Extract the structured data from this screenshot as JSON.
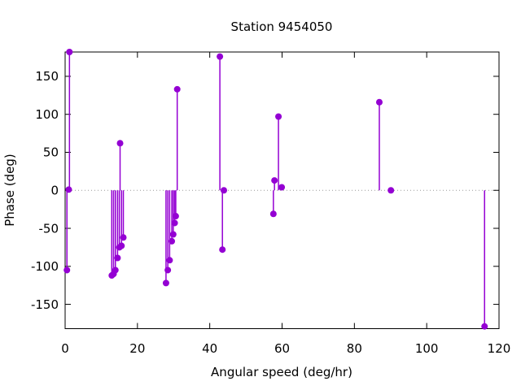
{
  "figure": {
    "background": "#ffffff",
    "accent_color": "#9400d3",
    "axis_color": "#000000",
    "zero_line_color": "#999999"
  },
  "chart_data": {
    "type": "scatter",
    "style": "impulses+points",
    "title": "Station 9454050",
    "xlabel": "Angular speed (deg/hr)",
    "ylabel": "Phase (deg)",
    "xlim": [
      0,
      120
    ],
    "ylim": [
      -182,
      182
    ],
    "xticks": [
      0,
      20,
      40,
      60,
      80,
      100,
      120
    ],
    "yticks": [
      -150,
      -100,
      -50,
      0,
      50,
      100,
      150
    ],
    "grid": false,
    "zero_line": true,
    "legend": "none",
    "series": [
      {
        "name": "phase",
        "color": "#9400d3",
        "points": [
          [
            0.5,
            -105
          ],
          [
            1.0,
            1
          ],
          [
            1.2,
            182
          ],
          [
            12.9,
            -112
          ],
          [
            13.4,
            -110
          ],
          [
            13.9,
            -105
          ],
          [
            14.5,
            -89
          ],
          [
            15.0,
            -75
          ],
          [
            15.2,
            62
          ],
          [
            15.6,
            -73
          ],
          [
            16.1,
            -62
          ],
          [
            27.9,
            -122
          ],
          [
            28.4,
            -105
          ],
          [
            28.9,
            -92
          ],
          [
            29.5,
            -67
          ],
          [
            29.9,
            -58
          ],
          [
            30.3,
            -43
          ],
          [
            30.6,
            -34
          ],
          [
            31.0,
            133
          ],
          [
            42.8,
            176
          ],
          [
            43.5,
            -78
          ],
          [
            43.9,
            0
          ],
          [
            57.6,
            -31
          ],
          [
            57.9,
            13
          ],
          [
            59.0,
            97
          ],
          [
            59.9,
            4
          ],
          [
            86.9,
            116
          ],
          [
            90.1,
            0
          ],
          [
            116.0,
            -179
          ]
        ]
      }
    ]
  }
}
